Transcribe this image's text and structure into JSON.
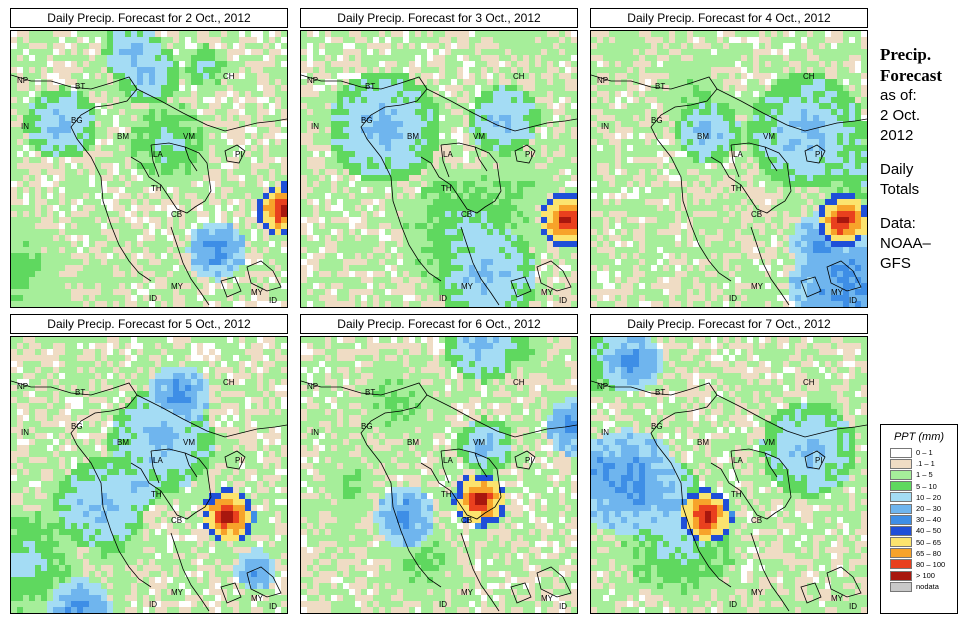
{
  "panels": [
    {
      "title": "Daily Precip. Forecast for  2 Oct., 2012"
    },
    {
      "title": "Daily Precip. Forecast for  3 Oct., 2012"
    },
    {
      "title": "Daily Precip. Forecast for  4 Oct., 2012"
    },
    {
      "title": "Daily Precip. Forecast for  5 Oct., 2012"
    },
    {
      "title": "Daily Precip. Forecast for  6 Oct., 2012"
    },
    {
      "title": "Daily Precip. Forecast for  7 Oct., 2012"
    }
  ],
  "country_labels": [
    "NP",
    "BT",
    "CH",
    "IN",
    "BG",
    "BM",
    "VM",
    "LA",
    "PI",
    "TH",
    "CB",
    "MY",
    "ID",
    "MY",
    "ID"
  ],
  "sidebar": {
    "heading_line1": "Precip.",
    "heading_line2": "Forecast",
    "asof_label": "as of:",
    "date_line1": "2 Oct.",
    "date_line2": "2012",
    "totals_line1": "Daily",
    "totals_line2": "Totals",
    "data_line1": "Data:",
    "data_line2": "NOAA–",
    "data_line3": "GFS"
  },
  "legend": {
    "title": "PPT (mm)",
    "items": [
      {
        "label": "0 – 1",
        "color": "#ffffff"
      },
      {
        "label": ".1 – 1",
        "color": "#efdcc4"
      },
      {
        "label": "1 – 5",
        "color": "#a6ee9a"
      },
      {
        "label": "5 – 10",
        "color": "#5fd85f"
      },
      {
        "label": "10 – 20",
        "color": "#a4dcf4"
      },
      {
        "label": "20 – 30",
        "color": "#6fb5ee"
      },
      {
        "label": "30 – 40",
        "color": "#3e8ee6"
      },
      {
        "label": "40 – 50",
        "color": "#1f4fd8"
      },
      {
        "label": "50 – 65",
        "color": "#fce46e"
      },
      {
        "label": "65 – 80",
        "color": "#f7a32a"
      },
      {
        "label": "80 – 100",
        "color": "#e9401e"
      },
      {
        "label": "> 100",
        "color": "#a8170e"
      },
      {
        "label": "nodata",
        "color": "#c8c8c8"
      }
    ]
  }
}
